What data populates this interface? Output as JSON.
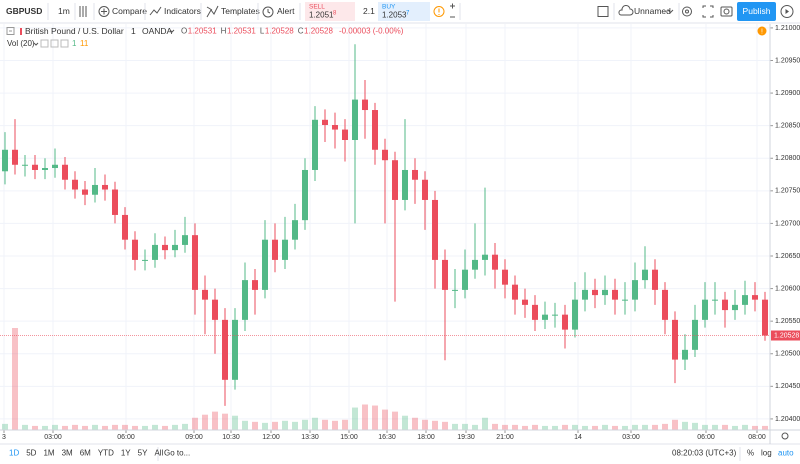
{
  "toolbar": {
    "symbol": "GBPUSD",
    "interval": "1m",
    "buttons": [
      "Compare",
      "Indicators",
      "Templates",
      "Alert"
    ],
    "sell": {
      "label": "SELL",
      "price": "1.2051",
      "pip": "8"
    },
    "spread": "2.1",
    "buy": {
      "label": "BUY",
      "price": "1.2053",
      "pip": "7"
    },
    "layout": "Unnamed",
    "publish": "Publish"
  },
  "chart_data": {
    "type": "candlestick",
    "title": "British Pound / U.S. Dollar",
    "interval": "1",
    "source": "OANDA",
    "ohlc_legend": [
      {
        "label": "O",
        "value": "1.20531"
      },
      {
        "label": "H",
        "value": "1.20531"
      },
      {
        "label": "L",
        "value": "1.20528"
      },
      {
        "label": "C",
        "value": "1.20528"
      }
    ],
    "change": "-0.00003 (-0.00%)",
    "open": [
      1.2078,
      1.20813,
      1.2079,
      1.2079,
      1.20782,
      1.20785,
      1.2079,
      1.20767,
      1.20752,
      1.20744,
      1.20759,
      1.20752,
      1.20713,
      1.20675,
      1.20644,
      1.20644,
      1.20667,
      1.20659,
      1.20667,
      1.20682,
      1.20598,
      1.20583,
      1.20552,
      1.2046,
      1.20552,
      1.20613,
      1.20598,
      1.20675,
      1.20644,
      1.20675,
      1.20705,
      1.20782,
      1.20859,
      1.20851,
      1.20844,
      1.20828,
      1.2089,
      1.20874,
      1.20813,
      1.20797,
      1.20736,
      1.20782,
      1.20767,
      1.20736,
      1.20644,
      1.20598,
      1.20598,
      1.20629,
      1.20644,
      1.20652,
      1.20629,
      1.20606,
      1.20583,
      1.20575,
      1.20552,
      1.2056,
      1.2056,
      1.20537,
      1.20583,
      1.20598,
      1.2059,
      1.20598,
      1.20583,
      1.20583,
      1.20613,
      1.20629,
      1.20598,
      1.20552,
      1.20491,
      1.20506,
      1.20552,
      1.20583,
      1.20583,
      1.20567,
      1.20575,
      1.2059,
      1.20583
    ],
    "high": [
      1.2084,
      1.2086,
      1.20805,
      1.20805,
      1.208,
      1.20815,
      1.20802,
      1.2078,
      1.20765,
      1.20785,
      1.20775,
      1.20764,
      1.20725,
      1.20688,
      1.2066,
      1.20685,
      1.2068,
      1.2069,
      1.2071,
      1.207,
      1.2062,
      1.206,
      1.2057,
      1.2057,
      1.2064,
      1.2063,
      1.20705,
      1.207,
      1.2071,
      1.2073,
      1.208,
      1.2088,
      1.20875,
      1.2087,
      1.2086,
      1.20975,
      1.2092,
      1.20885,
      1.2083,
      1.2081,
      1.2086,
      1.208,
      1.2078,
      1.2075,
      1.2066,
      1.2063,
      1.2066,
      1.207,
      1.20755,
      1.2067,
      1.20645,
      1.2062,
      1.206,
      1.2059,
      1.2058,
      1.20578,
      1.20575,
      1.2061,
      1.20625,
      1.20615,
      1.2062,
      1.20615,
      1.2061,
      1.2064,
      1.20665,
      1.20645,
      1.2061,
      1.20565,
      1.2053,
      1.20575,
      1.2061,
      1.2061,
      1.20595,
      1.20598,
      1.20612,
      1.2061,
      1.20595
    ],
    "low": [
      1.2076,
      1.20775,
      1.20772,
      1.20768,
      1.20768,
      1.2077,
      1.20752,
      1.20738,
      1.20728,
      1.20732,
      1.20735,
      1.207,
      1.2066,
      1.20628,
      1.20628,
      1.20632,
      1.20645,
      1.20648,
      1.20655,
      1.2056,
      1.2053,
      1.205,
      1.2042,
      1.20445,
      1.20535,
      1.2056,
      1.20585,
      1.20625,
      1.2063,
      1.2066,
      1.2069,
      1.20765,
      1.20825,
      1.20815,
      1.20795,
      1.207,
      1.2083,
      1.2079,
      1.207,
      1.2058,
      1.2072,
      1.2073,
      1.2069,
      1.206,
      1.2049,
      1.2057,
      1.20585,
      1.20615,
      1.2062,
      1.206,
      1.20585,
      1.2056,
      1.20555,
      1.20535,
      1.20538,
      1.2054,
      1.20508,
      1.20525,
      1.20565,
      1.2057,
      1.20575,
      1.2056,
      1.2056,
      1.20565,
      1.206,
      1.20575,
      1.2053,
      1.20455,
      1.20475,
      1.20495,
      1.2054,
      1.2056,
      1.2054,
      1.20552,
      1.2056,
      1.20565,
      1.2052
    ],
    "close": [
      1.20813,
      1.2079,
      1.2079,
      1.20782,
      1.20785,
      1.2079,
      1.20767,
      1.20752,
      1.20744,
      1.20759,
      1.20752,
      1.20713,
      1.20675,
      1.20644,
      1.20644,
      1.20667,
      1.20659,
      1.20667,
      1.20682,
      1.20598,
      1.20583,
      1.20552,
      1.2046,
      1.20552,
      1.20613,
      1.20598,
      1.20675,
      1.20644,
      1.20675,
      1.20705,
      1.20782,
      1.20859,
      1.20851,
      1.20844,
      1.20828,
      1.2089,
      1.20874,
      1.20813,
      1.20797,
      1.20736,
      1.20782,
      1.20767,
      1.20736,
      1.20644,
      1.20598,
      1.20598,
      1.20629,
      1.20644,
      1.20652,
      1.20629,
      1.20606,
      1.20583,
      1.20575,
      1.20552,
      1.2056,
      1.2056,
      1.20537,
      1.20583,
      1.20598,
      1.2059,
      1.20598,
      1.20583,
      1.20583,
      1.20613,
      1.20629,
      1.20598,
      1.20552,
      1.20491,
      1.20506,
      1.20552,
      1.20583,
      1.20583,
      1.20567,
      1.20575,
      1.2059,
      1.20583,
      1.20528
    ],
    "volume": {
      "name": "Vol (20)",
      "legend_values": [
        "1",
        "11"
      ],
      "ylim": [
        0,
        100
      ],
      "values": [
        6,
        100,
        5,
        4,
        4,
        5,
        4,
        5,
        4,
        5,
        4,
        5,
        5,
        4,
        4,
        5,
        4,
        5,
        6,
        12,
        15,
        18,
        16,
        14,
        9,
        8,
        7,
        8,
        9,
        8,
        10,
        12,
        10,
        9,
        10,
        22,
        25,
        24,
        20,
        18,
        14,
        12,
        10,
        9,
        8,
        6,
        6,
        5,
        12,
        6,
        5,
        5,
        4,
        5,
        4,
        4,
        5,
        5,
        4,
        4,
        5,
        4,
        4,
        5,
        5,
        5,
        6,
        10,
        8,
        7,
        5,
        5,
        5,
        4,
        5,
        4,
        4
      ]
    },
    "xlim": [
      0,
      77
    ],
    "xticks": [
      {
        "value": 0.4,
        "label": "3"
      },
      {
        "value": 5.3,
        "label": "03:00"
      },
      {
        "value": 12.6,
        "label": "06:00"
      },
      {
        "value": 19.4,
        "label": "09:00"
      },
      {
        "value": 23.1,
        "label": "10:30"
      },
      {
        "value": 27.1,
        "label": "12:00"
      },
      {
        "value": 31,
        "label": "13:30"
      },
      {
        "value": 34.9,
        "label": "15:00"
      },
      {
        "value": 38.7,
        "label": "16:30"
      },
      {
        "value": 42.6,
        "label": "18:00"
      },
      {
        "value": 46.6,
        "label": "19:30"
      },
      {
        "value": 50.5,
        "label": "21:00"
      },
      {
        "value": 57.8,
        "label": "14"
      },
      {
        "value": 63.1,
        "label": "03:00"
      },
      {
        "value": 70.6,
        "label": "06:00"
      },
      {
        "value": 75.7,
        "label": "08:00"
      }
    ],
    "ylim": [
      1.20383,
      1.21006
    ],
    "yticks": [
      {
        "value": 1.21,
        "label": "1.21000"
      },
      {
        "value": 1.2095,
        "label": "1.20950"
      },
      {
        "value": 1.209,
        "label": "1.20900"
      },
      {
        "value": 1.2085,
        "label": "1.20850"
      },
      {
        "value": 1.208,
        "label": "1.20800"
      },
      {
        "value": 1.2075,
        "label": "1.20750"
      },
      {
        "value": 1.207,
        "label": "1.20700"
      },
      {
        "value": 1.2065,
        "label": "1.20650"
      },
      {
        "value": 1.206,
        "label": "1.20600"
      },
      {
        "value": 1.2055,
        "label": "1.20550"
      },
      {
        "value": 1.205,
        "label": "1.20500"
      },
      {
        "value": 1.2045,
        "label": "1.20450"
      },
      {
        "value": 1.204,
        "label": "1.20400"
      }
    ],
    "last_price": {
      "value": 1.20528,
      "label": "1.20528"
    },
    "up_color": "#53b987",
    "down_color": "#eb4d5c",
    "grid": true
  },
  "footer": {
    "ranges": [
      "1D",
      "5D",
      "1M",
      "3M",
      "6M",
      "YTD",
      "1Y",
      "5Y",
      "All"
    ],
    "goto": "Go to...",
    "clock": "08:20:03 (UTC+3)",
    "options": [
      "%",
      "log",
      "auto"
    ]
  }
}
